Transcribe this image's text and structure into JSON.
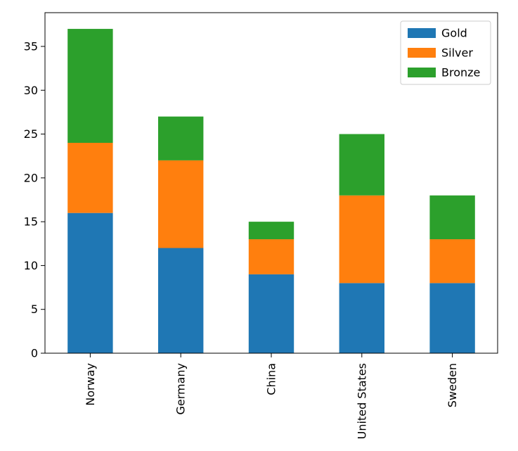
{
  "chart_data": {
    "type": "bar",
    "stacked": true,
    "categories": [
      "Norway",
      "Germany",
      "China",
      "United States",
      "Sweden"
    ],
    "series": [
      {
        "name": "Gold",
        "color": "#1f77b4",
        "values": [
          16,
          12,
          9,
          8,
          8
        ]
      },
      {
        "name": "Silver",
        "color": "#ff7f0e",
        "values": [
          8,
          10,
          4,
          10,
          5
        ]
      },
      {
        "name": "Bronze",
        "color": "#2ca02c",
        "values": [
          13,
          5,
          2,
          7,
          5
        ]
      }
    ],
    "ylim": [
      0,
      38.85
    ],
    "yticks": [
      0,
      5,
      10,
      15,
      20,
      25,
      30,
      35
    ],
    "legend": "top-right",
    "grid": false
  }
}
